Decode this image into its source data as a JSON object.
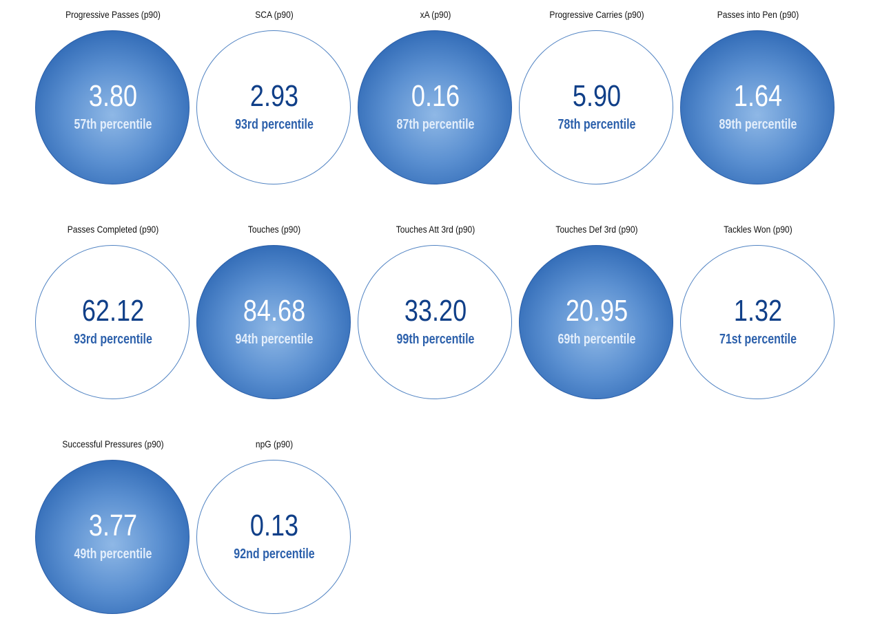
{
  "chart_data": {
    "type": "table",
    "stats": [
      {
        "label": "Progressive Passes (p90)",
        "value": "3.80",
        "percentile": 57,
        "percentile_text": "57th percentile",
        "style": "filled"
      },
      {
        "label": "SCA (p90)",
        "value": "2.93",
        "percentile": 93,
        "percentile_text": "93rd percentile",
        "style": "outline"
      },
      {
        "label": "xA (p90)",
        "value": "0.16",
        "percentile": 87,
        "percentile_text": "87th percentile",
        "style": "filled"
      },
      {
        "label": "Progressive Carries (p90)",
        "value": "5.90",
        "percentile": 78,
        "percentile_text": "78th percentile",
        "style": "outline"
      },
      {
        "label": "Passes into Pen (p90)",
        "value": "1.64",
        "percentile": 89,
        "percentile_text": "89th percentile",
        "style": "filled"
      },
      {
        "label": "Passes Completed (p90)",
        "value": "62.12",
        "percentile": 93,
        "percentile_text": "93rd percentile",
        "style": "outline"
      },
      {
        "label": "Touches (p90)",
        "value": "84.68",
        "percentile": 94,
        "percentile_text": "94th percentile",
        "style": "filled"
      },
      {
        "label": "Touches Att 3rd (p90)",
        "value": "33.20",
        "percentile": 99,
        "percentile_text": "99th percentile",
        "style": "outline"
      },
      {
        "label": "Touches Def 3rd (p90)",
        "value": "20.95",
        "percentile": 69,
        "percentile_text": "69th percentile",
        "style": "filled"
      },
      {
        "label": "Tackles Won (p90)",
        "value": "1.32",
        "percentile": 71,
        "percentile_text": "71st percentile",
        "style": "outline"
      },
      {
        "label": "Successful Pressures (p90)",
        "value": "3.77",
        "percentile": 49,
        "percentile_text": "49th percentile",
        "style": "filled"
      },
      {
        "label": "npG (p90)",
        "value": "0.13",
        "percentile": 92,
        "percentile_text": "92nd percentile",
        "style": "outline"
      }
    ]
  },
  "colors": {
    "filled_circle": "#2f69b5",
    "filled_circle_highlight": "#8fb8e6",
    "outline_border": "#4f82c2",
    "value_text_dark": "#103f88",
    "percentile_text_blue": "#2c60ab",
    "title_text": "#111111"
  }
}
